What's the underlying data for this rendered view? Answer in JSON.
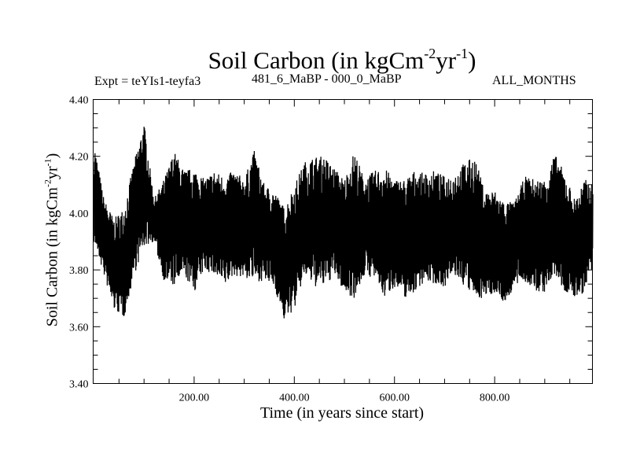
{
  "chart_data": {
    "type": "line",
    "title": "Soil Carbon (in kgCm",
    "title_sup1": "-2",
    "title_mid": "yr",
    "title_sup2": "-1",
    "title_end": ")",
    "subtitle_left": "Expt = teYIs1-teyfa3",
    "subtitle_center": "481_6_MaBP - 000_0_MaBP",
    "subtitle_right": "ALL_MONTHS",
    "xlabel": "Time (in years since start)",
    "ylabel": "Soil Carbon (in kgCm",
    "ylabel_sup1": "-2",
    "ylabel_mid": "yr",
    "ylabel_sup2": "-1",
    "ylabel_end": ")",
    "xlim": [
      0,
      996
    ],
    "ylim": [
      3.4,
      4.4
    ],
    "xticks": [
      200,
      400,
      600,
      800
    ],
    "xtick_labels": [
      "200.00",
      "400.00",
      "600.00",
      "800.00"
    ],
    "yticks": [
      3.4,
      3.6,
      3.8,
      4.0,
      4.2,
      4.4
    ],
    "ytick_labels": [
      "3.40",
      "3.60",
      "3.80",
      "4.00",
      "4.20",
      "4.40"
    ],
    "grid": false,
    "line_color": "#000000",
    "series": [
      {
        "name": "Soil Carbon",
        "note_values": "annual series shown as high-frequency band; envelope sampled every 20 years",
        "x": [
          0,
          20,
          40,
          60,
          80,
          100,
          120,
          140,
          160,
          180,
          200,
          220,
          240,
          260,
          280,
          300,
          320,
          340,
          360,
          380,
          400,
          420,
          440,
          460,
          480,
          500,
          520,
          540,
          560,
          580,
          600,
          620,
          640,
          660,
          680,
          700,
          720,
          740,
          760,
          780,
          800,
          820,
          840,
          860,
          880,
          900,
          920,
          940,
          960,
          980,
          996
        ],
        "upper": [
          4.25,
          4.05,
          3.98,
          4.02,
          4.18,
          4.32,
          4.05,
          4.12,
          4.22,
          4.15,
          4.16,
          4.12,
          4.15,
          4.13,
          4.15,
          4.12,
          4.22,
          4.1,
          4.08,
          4.02,
          4.1,
          4.18,
          4.2,
          4.2,
          4.16,
          4.12,
          4.22,
          4.12,
          4.15,
          4.16,
          4.12,
          4.12,
          4.15,
          4.14,
          4.15,
          4.13,
          4.14,
          4.18,
          4.2,
          4.08,
          4.08,
          4.04,
          4.04,
          4.13,
          4.12,
          4.12,
          4.21,
          4.14,
          4.05,
          4.12,
          4.1
        ],
        "lower": [
          3.9,
          3.78,
          3.66,
          3.63,
          3.78,
          3.88,
          3.9,
          3.76,
          3.74,
          3.78,
          3.72,
          3.8,
          3.78,
          3.74,
          3.78,
          3.77,
          3.76,
          3.76,
          3.74,
          3.62,
          3.66,
          3.78,
          3.74,
          3.74,
          3.78,
          3.72,
          3.7,
          3.78,
          3.77,
          3.7,
          3.74,
          3.7,
          3.72,
          3.76,
          3.75,
          3.74,
          3.78,
          3.74,
          3.7,
          3.7,
          3.72,
          3.68,
          3.74,
          3.76,
          3.72,
          3.72,
          3.78,
          3.72,
          3.7,
          3.72,
          3.8
        ]
      }
    ]
  }
}
